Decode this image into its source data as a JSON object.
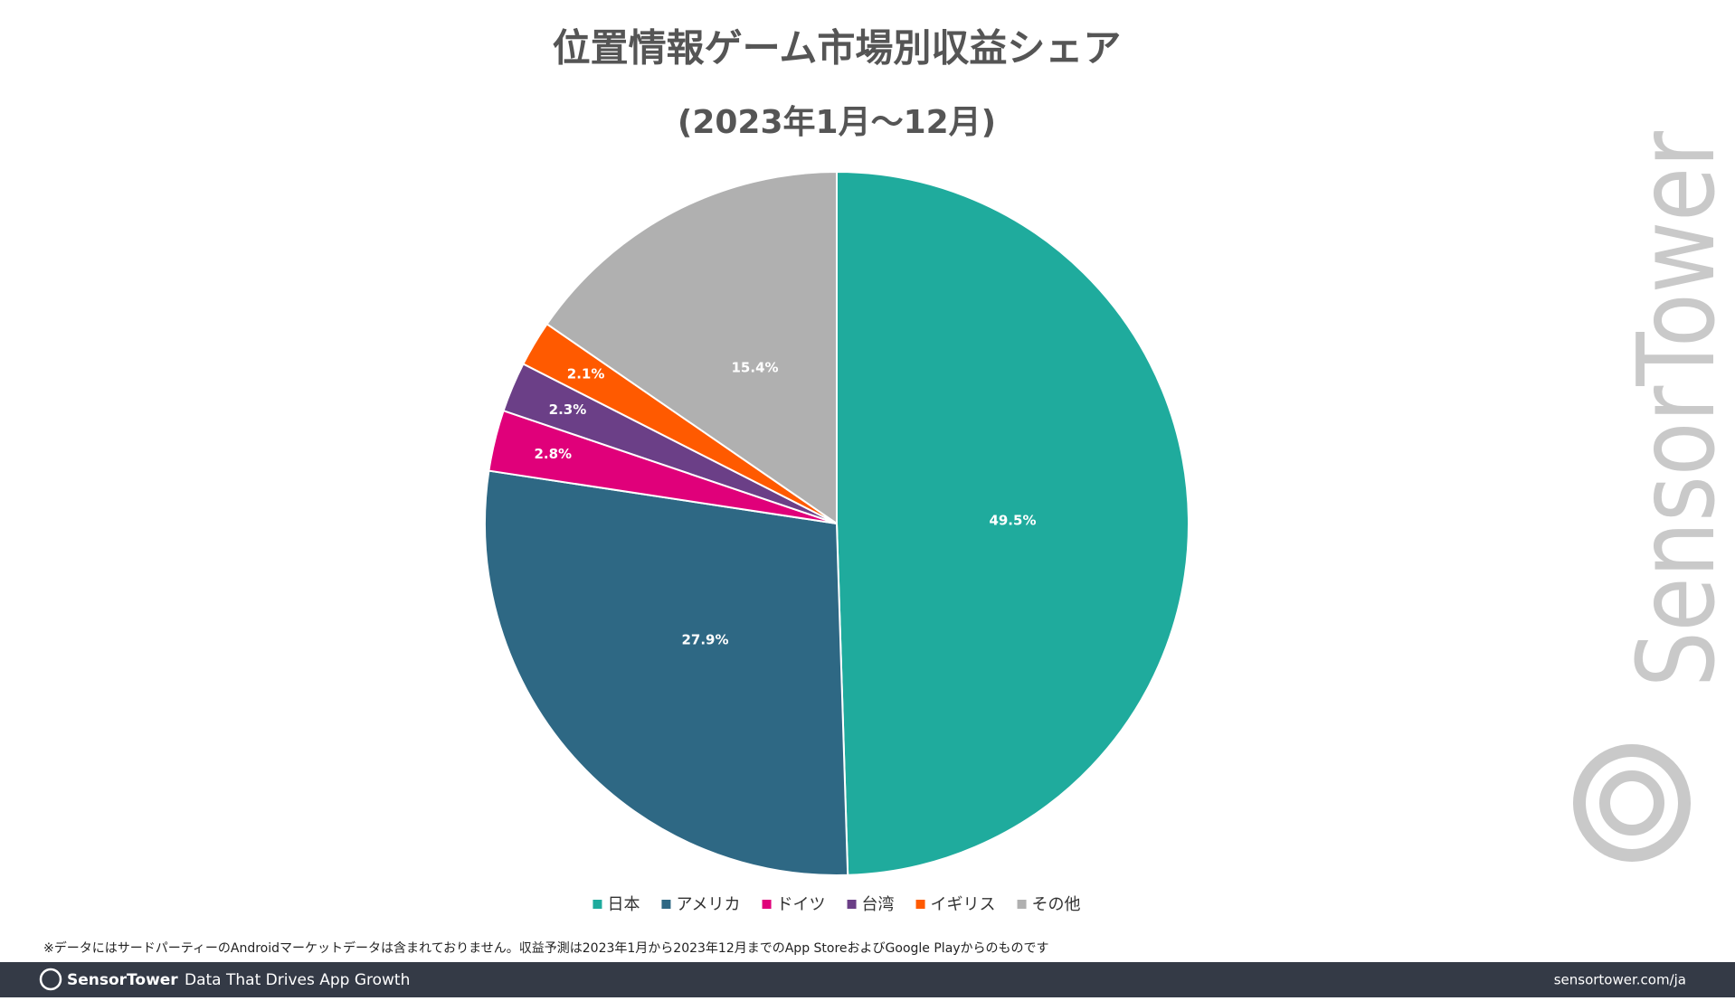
{
  "chart_data": {
    "type": "pie",
    "title": "位置情報ゲーム市場別収益シェア",
    "subtitle": "(2023年1月〜12月)",
    "categories": [
      "日本",
      "アメリカ",
      "ドイツ",
      "台湾",
      "イギリス",
      "その他"
    ],
    "values": [
      49.5,
      27.9,
      2.8,
      2.3,
      2.1,
      15.4
    ],
    "value_labels": [
      "49.5%",
      "27.9%",
      "2.8%",
      "2.3%",
      "2.1%",
      "15.4%"
    ],
    "colors": [
      "#1fab9d",
      "#2e6884",
      "#e0007a",
      "#6b3f87",
      "#ff5a00",
      "#b0b0b0"
    ]
  },
  "footnote": "※データにはサードパーティーのAndroidマーケットデータは含まれておりません。収益予測は2023年1月から2023年12月までのApp StoreおよびGoogle Playからのものです",
  "watermark": "SensorTower",
  "footer": {
    "brand": "SensorTower",
    "tagline": "Data That Drives App Growth",
    "url": "sensortower.com/ja"
  }
}
